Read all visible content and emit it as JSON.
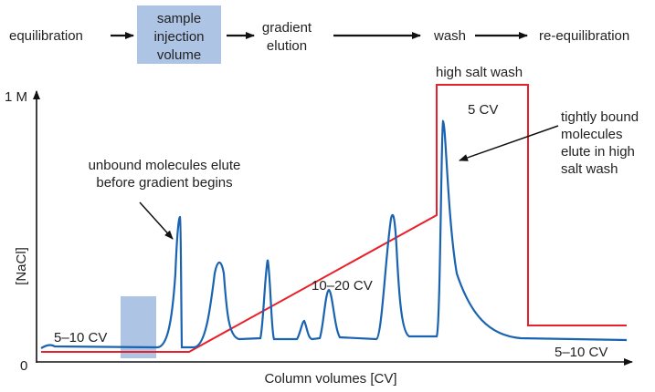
{
  "flow": {
    "steps": [
      "equilibration",
      "sample",
      "injection",
      "volume",
      "gradient",
      "elution",
      "wash",
      "re-equilibration"
    ]
  },
  "axes": {
    "y_label": "[NaCl]",
    "y_top": "1 M",
    "y_zero": "0",
    "x_label": "Column volumes [CV]"
  },
  "annotations": {
    "high_salt_wash": "high salt wash",
    "five_cv": "5 CV",
    "tightly_bound": [
      "tightly bound",
      "molecules",
      "elute in high",
      "salt wash"
    ],
    "unbound": [
      "unbound molecules elute",
      "before gradient begins"
    ],
    "equil_cv": "5–10 CV",
    "gradient_cv": "10–20 CV",
    "reequil_cv": "5–10 CV"
  },
  "colors": {
    "salt_line": "#e8202a",
    "absorbance_trace": "#1a63b0",
    "injection_box": "#adc4e4"
  }
}
